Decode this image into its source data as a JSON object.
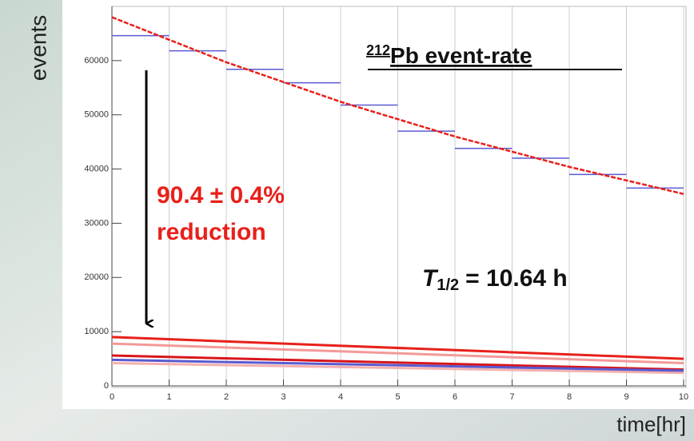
{
  "chart_data": {
    "type": "histogram",
    "x_label": "time[hr]",
    "y_label": "events",
    "annotation_title": {
      "superscript": "212",
      "text": "Pb event-rate"
    },
    "annotation_reduction": [
      "90.4 ± 0.4%",
      "reduction"
    ],
    "annotation_halflife": {
      "symbol": "T",
      "subscript": "1/2",
      "text": "= 10.64 h"
    },
    "bins": [
      0,
      1,
      2,
      3,
      4,
      5,
      6,
      7,
      8,
      9,
      10
    ],
    "values": [
      64600,
      61800,
      58400,
      55900,
      51800,
      47000,
      43800,
      42000,
      39000,
      36500
    ],
    "color": "#5a5ad0",
    "fit": {
      "color": "#e8201a",
      "x": [
        0,
        2,
        4,
        6,
        8,
        10
      ],
      "values": [
        68000,
        59700,
        52400,
        46000,
        40400,
        35400
      ]
    },
    "lower_series": [
      {
        "color": "#e8201a",
        "x": [
          0,
          10
        ],
        "values": [
          9000,
          5000
        ]
      },
      {
        "color": "#f29a98",
        "x": [
          0,
          10
        ],
        "values": [
          7800,
          4200
        ]
      },
      {
        "color": "#d8151b",
        "x": [
          0,
          10
        ],
        "values": [
          5600,
          3000
        ]
      },
      {
        "color": "#f4b0ae",
        "x": [
          0,
          10
        ],
        "values": [
          4200,
          2400
        ]
      },
      {
        "color": "#5a5ad0",
        "x": [
          0,
          10
        ],
        "values": [
          4800,
          2800
        ]
      }
    ],
    "xlim": [
      0,
      10
    ],
    "xticks": [
      0,
      1,
      2,
      3,
      4,
      5,
      6,
      7,
      8,
      9,
      10
    ],
    "ylim": [
      0,
      70000
    ],
    "yticks": [
      0,
      10000,
      20000,
      30000,
      40000,
      50000,
      60000
    ],
    "grid": "x"
  }
}
